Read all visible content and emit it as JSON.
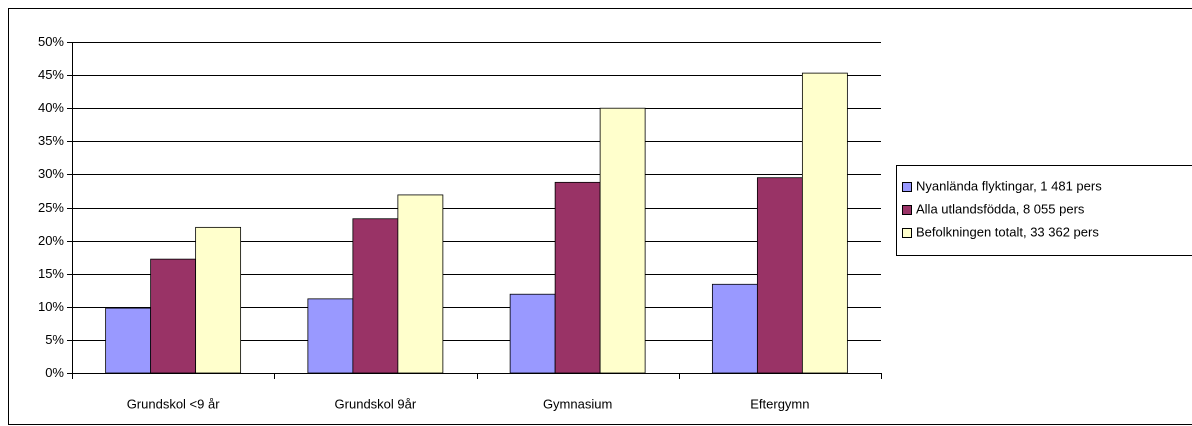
{
  "chart_data": {
    "type": "bar",
    "categories": [
      "Grundskol <9 år",
      "Grundskol 9år",
      "Gymnasium",
      "Eftergymn"
    ],
    "series": [
      {
        "name": "Nyanlända flyktingar, 1 481 pers",
        "color": "#9999ff",
        "values": [
          9.8,
          11.2,
          11.9,
          13.4
        ]
      },
      {
        "name": "Alla utlandsfödda, 8 055 pers",
        "color": "#993366",
        "values": [
          17.2,
          23.3,
          28.8,
          29.5
        ]
      },
      {
        "name": "Befolkningen totalt, 33 362 pers",
        "color": "#ffffcc",
        "values": [
          22.0,
          26.9,
          40.0,
          45.3
        ]
      }
    ],
    "ylim": [
      0,
      50
    ],
    "yticks": [
      {
        "value": 0,
        "label": "0%"
      },
      {
        "value": 5,
        "label": "5%"
      },
      {
        "value": 10,
        "label": "10%"
      },
      {
        "value": 15,
        "label": "15%"
      },
      {
        "value": 20,
        "label": "20%"
      },
      {
        "value": 25,
        "label": "25%"
      },
      {
        "value": 30,
        "label": "30%"
      },
      {
        "value": 35,
        "label": "35%"
      },
      {
        "value": 40,
        "label": "40%"
      },
      {
        "value": 45,
        "label": "45%"
      },
      {
        "value": 50,
        "label": "50%"
      }
    ],
    "grid": true,
    "legend": "right"
  }
}
